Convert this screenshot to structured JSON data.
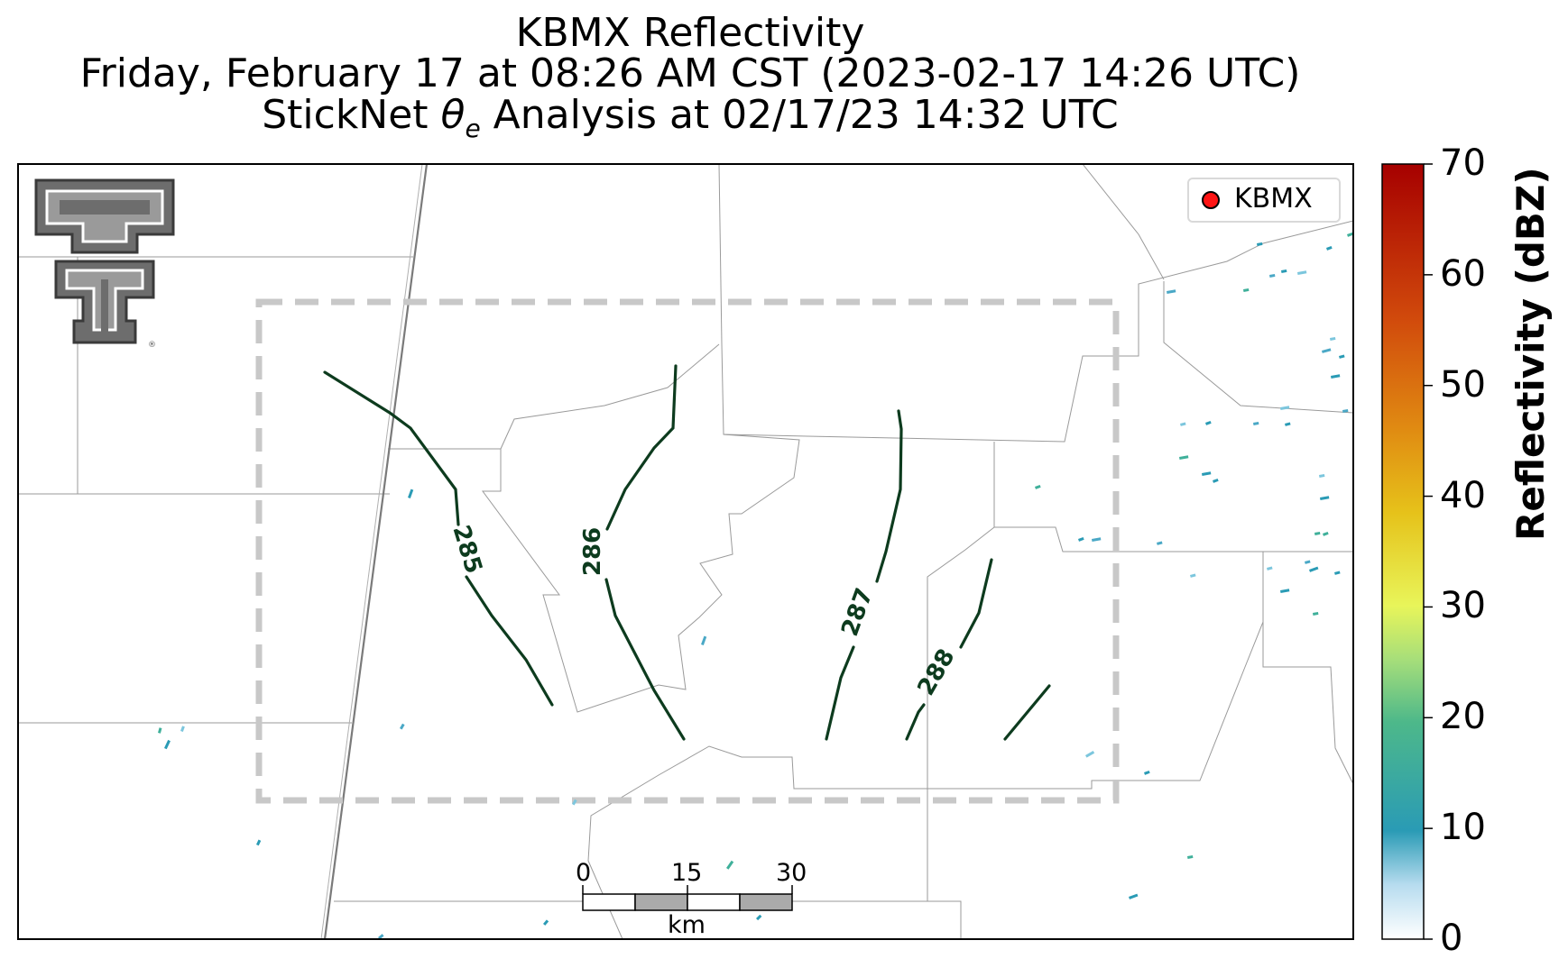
{
  "title": {
    "line1": "KBMX Reflectivity",
    "line2": "Friday, February 17 at 08:26 AM CST (2023-02-17 14:26 UTC)",
    "line3_prefix": "StickNet ",
    "line3_symbol": "θ",
    "line3_subscript": "e",
    "line3_suffix": " Analysis at 02/17/23 14:32 UTC"
  },
  "legend": {
    "label": "KBMX",
    "marker_color": "#ff1414"
  },
  "colorbar": {
    "label": "Reflectivity (dBZ)",
    "ticks": [
      "0",
      "10",
      "20",
      "30",
      "40",
      "50",
      "60",
      "70"
    ],
    "range": [
      0,
      70
    ],
    "colors": [
      "#ffffff",
      "#b7dcef",
      "#2a9bb5",
      "#4db88a",
      "#a6de7a",
      "#e8f55a",
      "#e6c21a",
      "#e08a12",
      "#d14a0c",
      "#a60000"
    ]
  },
  "contours": {
    "color": "#0d3b1e",
    "labels": [
      "285",
      "286",
      "287",
      "288"
    ]
  },
  "scale_bar": {
    "ticks": [
      "0",
      "15",
      "30"
    ],
    "unit": "km"
  },
  "logo": {
    "name": "Texas Tech double-T"
  }
}
